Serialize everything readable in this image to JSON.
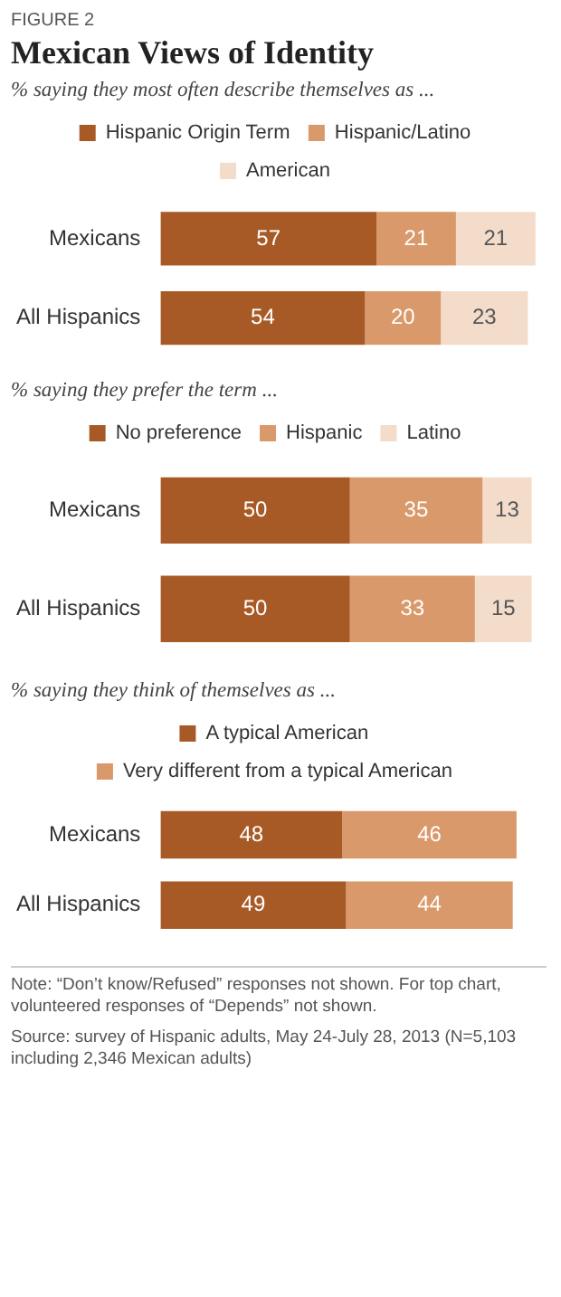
{
  "chart_data": [
    {
      "type": "bar",
      "title": "Mexican Views of Identity",
      "subtitle": "% saying they most often describe themselves as ...",
      "annotations": [
        "FIGURE 2"
      ],
      "orientation": "horizontal",
      "stacked": true,
      "data_labels": true,
      "legend": "top",
      "categories": [
        "Mexicans",
        "All Hispanics"
      ],
      "series": [
        {
          "name": "Hispanic Origin Term",
          "color": "#a85a26",
          "values": [
            57,
            54
          ]
        },
        {
          "name": "Hispanic/Latino",
          "color": "#d9996a",
          "values": [
            21,
            20
          ]
        },
        {
          "name": "American",
          "color": "#f4dccb",
          "values": [
            21,
            23
          ]
        }
      ]
    },
    {
      "type": "bar",
      "subtitle": "% saying they prefer the term ...",
      "orientation": "horizontal",
      "stacked": true,
      "data_labels": true,
      "legend": "top",
      "categories": [
        "Mexicans",
        "All Hispanics"
      ],
      "series": [
        {
          "name": "No preference",
          "color": "#a85a26",
          "values": [
            50,
            50
          ]
        },
        {
          "name": "Hispanic",
          "color": "#d9996a",
          "values": [
            35,
            33
          ]
        },
        {
          "name": "Latino",
          "color": "#f4dccb",
          "values": [
            13,
            15
          ]
        }
      ]
    },
    {
      "type": "bar",
      "subtitle": "% saying they think of themselves as ...",
      "annotations": [
        "Note: “Don’t know/Refused” responses not shown. For top chart, volunteered responses of “Depends” not shown.",
        "Source: survey of Hispanic adults, May 24-July 28, 2013 (N=5,103 including 2,346 Mexican adults)"
      ],
      "orientation": "horizontal",
      "stacked": true,
      "data_labels": true,
      "legend": "top",
      "categories": [
        "Mexicans",
        "All Hispanics"
      ],
      "series": [
        {
          "name": "A typical American",
          "color": "#a85a26",
          "values": [
            48,
            49
          ]
        },
        {
          "name": "Very different from a typical American",
          "color": "#d9996a",
          "values": [
            46,
            44
          ]
        }
      ]
    }
  ]
}
